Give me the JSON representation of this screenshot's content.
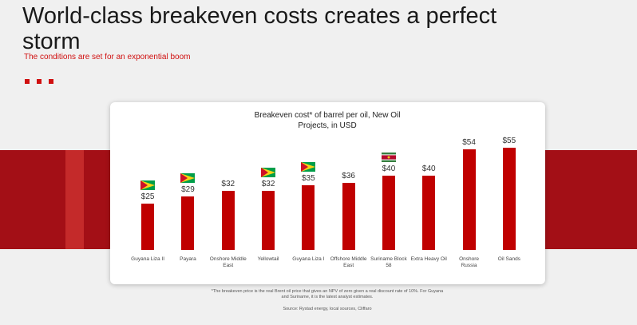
{
  "slide": {
    "title": "World-class breakeven costs creates a perfect storm",
    "subtitle": "The conditions are set for an exponential boom",
    "footnote": "*The breakeven price is the real Brent oil price that gives an NPV of zero given a real discount rate of 10%. For Guyana and Suriname, it is the latest analyst estimates.",
    "source": "Source: Rystad energy, local sources, Cliffaro"
  },
  "chart_data": {
    "type": "bar",
    "title": "Breakeven cost* of barrel per oil, New Oil Projects, in USD",
    "categories": [
      "Guyana Liza II",
      "Payara",
      "Onshore Middle East",
      "Yellowtail",
      "Guyana Liza I",
      "Offshore Middle East",
      "Suriname Block 58",
      "Extra Heavy Oil",
      "Onshore Russia",
      "Oil Sands"
    ],
    "values": [
      25,
      29,
      32,
      32,
      35,
      36,
      40,
      40,
      54,
      55
    ],
    "value_labels": [
      "$25",
      "$29",
      "$32",
      "$32",
      "$35",
      "$36",
      "$40",
      "$40",
      "$54",
      "$55"
    ],
    "color": "#c00000"
  }
}
